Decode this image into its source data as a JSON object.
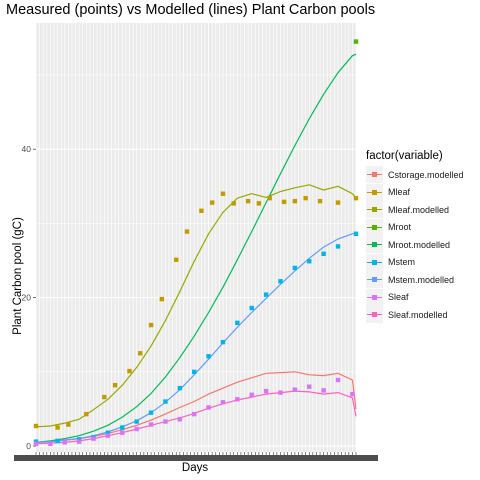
{
  "chart_data": {
    "type": "line",
    "title": "Measured (points) vs Modelled (lines) Plant Carbon pools",
    "xlabel": "Days",
    "ylabel": "Plant Carbon pool (gC)",
    "yticks": [
      0,
      20,
      40
    ],
    "ylim": [
      -0.8,
      57
    ],
    "xlim": [
      1,
      90
    ],
    "grid": true,
    "legend_title": "factor(variable)",
    "legend_position": "right",
    "series": [
      {
        "name": "Cstorage.modelled",
        "kind": "line",
        "color": "#F8766D",
        "x": [
          1,
          5,
          9,
          13,
          17,
          21,
          25,
          29,
          33,
          37,
          41,
          45,
          49,
          53,
          57,
          61,
          65,
          69,
          73,
          77,
          81,
          85,
          89,
          90
        ],
        "values": [
          0.5,
          0.6,
          0.8,
          1.0,
          1.3,
          1.7,
          2.2,
          2.8,
          3.5,
          4.3,
          5.2,
          6.0,
          7.0,
          7.8,
          8.6,
          9.2,
          9.8,
          9.9,
          10.0,
          9.6,
          9.5,
          9.8,
          8.9,
          5.0
        ]
      },
      {
        "name": "Mleaf",
        "kind": "points",
        "color": "#C49A00",
        "x": [
          1,
          7,
          10,
          15,
          20,
          23,
          27,
          30,
          33,
          36,
          40,
          43,
          47,
          50,
          53,
          56,
          60,
          63,
          66,
          70,
          73,
          76,
          80,
          85,
          90
        ],
        "values": [
          2.7,
          2.5,
          2.9,
          4.3,
          6.6,
          8.2,
          10.1,
          12.5,
          16.3,
          19.8,
          25.1,
          28.9,
          31.7,
          32.8,
          34.0,
          32.7,
          33.0,
          32.7,
          33.4,
          32.9,
          33.0,
          33.4,
          33.0,
          32.8,
          33.4
        ]
      },
      {
        "name": "Mleaf.modelled",
        "kind": "line",
        "color": "#99A800",
        "x": [
          1,
          5,
          9,
          13,
          17,
          21,
          25,
          29,
          33,
          37,
          41,
          45,
          49,
          53,
          57,
          61,
          65,
          69,
          73,
          77,
          81,
          85,
          89,
          90
        ],
        "values": [
          2.6,
          2.7,
          3.1,
          3.6,
          4.9,
          6.3,
          8.2,
          10.6,
          13.5,
          16.9,
          20.8,
          24.9,
          28.6,
          31.5,
          33.4,
          34.0,
          33.5,
          34.3,
          34.8,
          35.2,
          34.5,
          35.0,
          34.0,
          33.4
        ]
      },
      {
        "name": "Mroot",
        "kind": "points",
        "color": "#53B400",
        "x": [
          90
        ],
        "values": [
          54.5
        ]
      },
      {
        "name": "Mroot.modelled",
        "kind": "line",
        "color": "#00BC56",
        "x": [
          1,
          5,
          9,
          13,
          17,
          21,
          25,
          29,
          33,
          37,
          41,
          45,
          49,
          53,
          57,
          61,
          65,
          69,
          73,
          77,
          81,
          85,
          89,
          90
        ],
        "values": [
          0.5,
          0.7,
          1.0,
          1.4,
          2.0,
          2.8,
          3.9,
          5.3,
          7.1,
          9.3,
          11.9,
          14.8,
          18.0,
          21.4,
          25.1,
          28.9,
          32.8,
          36.7,
          40.5,
          44.1,
          47.4,
          50.3,
          52.6,
          52.8
        ]
      },
      {
        "name": "Mstem",
        "kind": "points",
        "color": "#00B6EB",
        "x": [
          1,
          7,
          13,
          17,
          21,
          25,
          29,
          33,
          37,
          41,
          45,
          49,
          53,
          57,
          61,
          65,
          69,
          73,
          77,
          81,
          85,
          90
        ],
        "values": [
          0.6,
          0.7,
          0.9,
          1.2,
          1.8,
          2.5,
          3.3,
          4.5,
          6.0,
          7.8,
          10.0,
          12.1,
          14.0,
          16.6,
          18.6,
          20.4,
          22.2,
          24.0,
          24.9,
          25.9,
          26.9,
          28.6
        ]
      },
      {
        "name": "Mstem.modelled",
        "kind": "line",
        "color": "#619CFF",
        "x": [
          1,
          5,
          9,
          13,
          17,
          21,
          25,
          29,
          33,
          37,
          41,
          45,
          49,
          53,
          57,
          61,
          65,
          69,
          73,
          77,
          81,
          85,
          89,
          90
        ],
        "values": [
          0.5,
          0.6,
          0.8,
          1.0,
          1.4,
          1.9,
          2.6,
          3.4,
          4.5,
          5.9,
          7.6,
          9.6,
          11.7,
          13.9,
          16.0,
          18.0,
          19.9,
          21.8,
          23.6,
          25.3,
          26.8,
          27.9,
          28.6,
          28.7
        ]
      },
      {
        "name": "Sleaf",
        "kind": "points",
        "color": "#DB72FB",
        "x": [
          1,
          5,
          9,
          13,
          17,
          21,
          25,
          29,
          33,
          37,
          41,
          45,
          49,
          53,
          57,
          61,
          65,
          69,
          73,
          77,
          81,
          85,
          89
        ],
        "values": [
          0.3,
          0.3,
          0.5,
          0.6,
          1.0,
          1.4,
          1.8,
          2.3,
          2.9,
          3.3,
          3.6,
          4.3,
          5.2,
          5.9,
          6.3,
          6.9,
          7.4,
          7.2,
          7.6,
          8.0,
          7.5,
          8.9,
          7.0
        ]
      },
      {
        "name": "Sleaf.modelled",
        "kind": "line",
        "color": "#FF61C3",
        "x": [
          1,
          5,
          9,
          13,
          17,
          21,
          25,
          29,
          33,
          37,
          41,
          45,
          49,
          53,
          57,
          61,
          65,
          69,
          73,
          77,
          81,
          85,
          89,
          90
        ],
        "values": [
          0.3,
          0.4,
          0.5,
          0.7,
          1.0,
          1.4,
          1.8,
          2.3,
          2.8,
          3.3,
          3.8,
          4.4,
          5.1,
          5.7,
          6.2,
          6.6,
          7.0,
          7.2,
          7.4,
          7.3,
          7.0,
          7.2,
          6.5,
          4.0
        ]
      }
    ]
  }
}
